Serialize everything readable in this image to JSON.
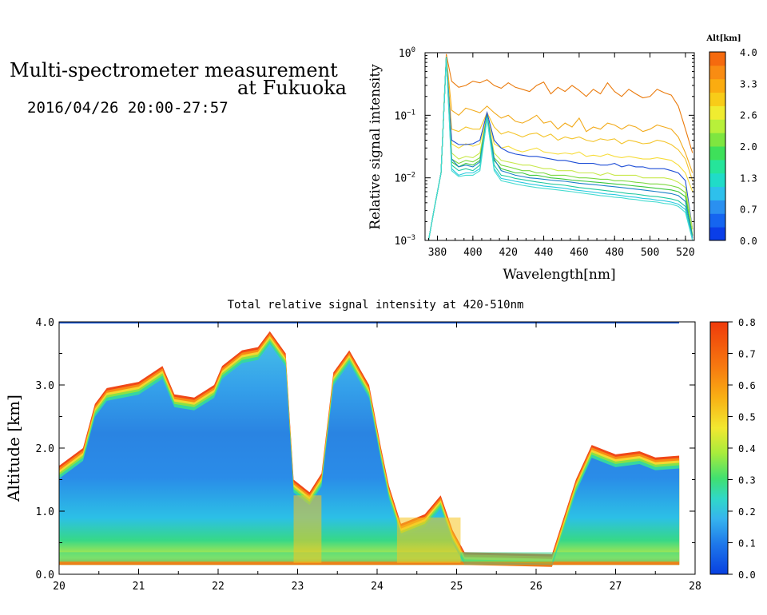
{
  "title": {
    "line1": "Multi-spectrometer measurement",
    "line2": "at Fukuoka",
    "datetime": "2016/04/26 20:00-27:57"
  },
  "chart_data": [
    {
      "type": "line",
      "xlabel": "Wavelength[nm]",
      "ylabel": "Relative signal intensity",
      "xlim": [
        373,
        525
      ],
      "ylim": [
        0.001,
        1
      ],
      "yscale": "log",
      "x_ticks": [
        380,
        400,
        420,
        440,
        460,
        480,
        500,
        520
      ],
      "y_tick_labels": [
        {
          "base": "10",
          "exp": "0",
          "value": 1
        },
        {
          "base": "10",
          "exp": "−1",
          "value": 0.1
        },
        {
          "base": "10",
          "exp": "−2",
          "value": 0.01
        },
        {
          "base": "10",
          "exp": "−3",
          "value": 0.001
        }
      ],
      "colorbar": {
        "title": "Alt[km]",
        "tick_labels": [
          "4.0",
          "3.3",
          "2.6",
          "2.0",
          "1.3",
          "0.7",
          "0.0"
        ],
        "range": [
          0.0,
          4.0
        ],
        "colors": [
          "#0a3ee8",
          "#1565f0",
          "#2a90f0",
          "#2ec0ec",
          "#20dcc8",
          "#25e59a",
          "#3ee05a",
          "#7ee640",
          "#b8f03a",
          "#f0ec30",
          "#f8cc18",
          "#fbac10",
          "#f98c12",
          "#f56a0e"
        ]
      },
      "x": [
        375,
        378,
        382,
        385,
        388,
        392,
        396,
        400,
        404,
        408,
        412,
        416,
        420,
        424,
        428,
        432,
        436,
        440,
        444,
        448,
        452,
        456,
        460,
        464,
        468,
        472,
        476,
        480,
        484,
        488,
        492,
        496,
        500,
        504,
        508,
        512,
        516,
        520,
        524
      ],
      "series": [
        {
          "color": "#ea7a0c",
          "values": [
            0.001,
            0.003,
            0.012,
            0.95,
            0.35,
            0.28,
            0.3,
            0.35,
            0.33,
            0.37,
            0.3,
            0.27,
            0.33,
            0.28,
            0.26,
            0.24,
            0.3,
            0.34,
            0.22,
            0.28,
            0.24,
            0.3,
            0.25,
            0.2,
            0.26,
            0.22,
            0.33,
            0.24,
            0.2,
            0.26,
            0.22,
            0.19,
            0.2,
            0.26,
            0.23,
            0.21,
            0.14,
            0.06,
            0.025
          ]
        },
        {
          "color": "#f2aa1a",
          "values": [
            0.001,
            0.003,
            0.012,
            0.9,
            0.12,
            0.1,
            0.13,
            0.12,
            0.11,
            0.14,
            0.11,
            0.09,
            0.1,
            0.08,
            0.075,
            0.085,
            0.1,
            0.075,
            0.08,
            0.06,
            0.075,
            0.065,
            0.09,
            0.055,
            0.065,
            0.06,
            0.075,
            0.07,
            0.06,
            0.07,
            0.065,
            0.055,
            0.06,
            0.07,
            0.065,
            0.06,
            0.045,
            0.025,
            0.012
          ]
        },
        {
          "color": "#f4c42a",
          "values": [
            0.001,
            0.003,
            0.012,
            0.88,
            0.06,
            0.055,
            0.065,
            0.06,
            0.06,
            0.11,
            0.065,
            0.05,
            0.055,
            0.05,
            0.045,
            0.05,
            0.052,
            0.045,
            0.05,
            0.04,
            0.045,
            0.042,
            0.045,
            0.04,
            0.038,
            0.042,
            0.04,
            0.042,
            0.035,
            0.04,
            0.038,
            0.035,
            0.036,
            0.04,
            0.038,
            0.034,
            0.028,
            0.02,
            0.009
          ]
        },
        {
          "color": "#f7dc3a",
          "values": [
            0.001,
            0.003,
            0.012,
            0.87,
            0.035,
            0.03,
            0.035,
            0.032,
            0.035,
            0.1,
            0.035,
            0.03,
            0.032,
            0.028,
            0.026,
            0.028,
            0.03,
            0.026,
            0.025,
            0.024,
            0.025,
            0.024,
            0.026,
            0.022,
            0.023,
            0.022,
            0.024,
            0.022,
            0.021,
            0.022,
            0.021,
            0.02,
            0.02,
            0.021,
            0.02,
            0.019,
            0.016,
            0.012,
            0.006
          ]
        },
        {
          "color": "#1e4ed6",
          "values": [
            0.001,
            0.003,
            0.012,
            0.86,
            0.04,
            0.034,
            0.034,
            0.035,
            0.04,
            0.11,
            0.04,
            0.03,
            0.026,
            0.024,
            0.023,
            0.022,
            0.022,
            0.021,
            0.02,
            0.019,
            0.019,
            0.018,
            0.017,
            0.017,
            0.017,
            0.016,
            0.016,
            0.017,
            0.015,
            0.016,
            0.015,
            0.015,
            0.014,
            0.014,
            0.014,
            0.013,
            0.012,
            0.009,
            0.0015
          ]
        },
        {
          "color": "#c8e84a",
          "values": [
            0.001,
            0.003,
            0.012,
            0.85,
            0.025,
            0.02,
            0.022,
            0.021,
            0.025,
            0.1,
            0.025,
            0.019,
            0.018,
            0.017,
            0.016,
            0.016,
            0.015,
            0.014,
            0.014,
            0.013,
            0.013,
            0.013,
            0.012,
            0.012,
            0.012,
            0.011,
            0.012,
            0.011,
            0.011,
            0.011,
            0.011,
            0.01,
            0.01,
            0.01,
            0.01,
            0.0095,
            0.0085,
            0.007,
            0.0015
          ]
        },
        {
          "color": "#7ad83e",
          "values": [
            0.001,
            0.003,
            0.012,
            0.85,
            0.02,
            0.017,
            0.019,
            0.018,
            0.021,
            0.1,
            0.021,
            0.016,
            0.015,
            0.014,
            0.013,
            0.013,
            0.012,
            0.012,
            0.011,
            0.011,
            0.011,
            0.0105,
            0.01,
            0.01,
            0.0098,
            0.0095,
            0.0095,
            0.009,
            0.009,
            0.0088,
            0.0085,
            0.0083,
            0.008,
            0.008,
            0.0078,
            0.0075,
            0.007,
            0.0058,
            0.0012
          ]
        },
        {
          "color": "#3cc83c",
          "values": [
            0.001,
            0.003,
            0.012,
            0.85,
            0.018,
            0.015,
            0.017,
            0.016,
            0.019,
            0.1,
            0.019,
            0.014,
            0.013,
            0.012,
            0.012,
            0.011,
            0.011,
            0.0105,
            0.01,
            0.0098,
            0.0095,
            0.0092,
            0.009,
            0.0088,
            0.0086,
            0.0084,
            0.0082,
            0.008,
            0.0078,
            0.0076,
            0.0074,
            0.0072,
            0.007,
            0.0068,
            0.0066,
            0.0064,
            0.006,
            0.005,
            0.0012
          ]
        },
        {
          "color": "#1a80c8",
          "values": [
            0.001,
            0.003,
            0.012,
            0.85,
            0.02,
            0.015,
            0.016,
            0.015,
            0.018,
            0.1,
            0.02,
            0.013,
            0.012,
            0.011,
            0.0105,
            0.01,
            0.0098,
            0.0095,
            0.0092,
            0.009,
            0.0088,
            0.0085,
            0.0082,
            0.008,
            0.0078,
            0.0076,
            0.0074,
            0.0072,
            0.007,
            0.0068,
            0.0066,
            0.0064,
            0.0062,
            0.006,
            0.0058,
            0.0056,
            0.0052,
            0.0042,
            0.0011
          ]
        },
        {
          "color": "#20c8a0",
          "values": [
            0.001,
            0.003,
            0.012,
            0.84,
            0.016,
            0.013,
            0.014,
            0.013,
            0.016,
            0.095,
            0.016,
            0.011,
            0.0105,
            0.0098,
            0.0094,
            0.009,
            0.0086,
            0.0083,
            0.008,
            0.0078,
            0.0076,
            0.0073,
            0.007,
            0.0068,
            0.0066,
            0.0064,
            0.0062,
            0.006,
            0.0058,
            0.0056,
            0.0055,
            0.0053,
            0.0051,
            0.005,
            0.0048,
            0.0046,
            0.0043,
            0.0035,
            0.001
          ]
        },
        {
          "color": "#28c8e0",
          "values": [
            0.001,
            0.003,
            0.012,
            0.84,
            0.014,
            0.011,
            0.012,
            0.012,
            0.014,
            0.09,
            0.014,
            0.0098,
            0.0093,
            0.0088,
            0.0084,
            0.008,
            0.0077,
            0.0074,
            0.0072,
            0.007,
            0.0068,
            0.0065,
            0.0063,
            0.0061,
            0.0059,
            0.0057,
            0.0055,
            0.0054,
            0.0052,
            0.005,
            0.0049,
            0.0047,
            0.0046,
            0.0044,
            0.0043,
            0.0041,
            0.0038,
            0.0031,
            0.001
          ]
        },
        {
          "color": "#46dcd0",
          "values": [
            0.001,
            0.003,
            0.012,
            0.84,
            0.013,
            0.0105,
            0.011,
            0.011,
            0.013,
            0.088,
            0.013,
            0.009,
            0.0085,
            0.008,
            0.0076,
            0.0073,
            0.007,
            0.0068,
            0.0066,
            0.0064,
            0.0062,
            0.006,
            0.0058,
            0.0056,
            0.0054,
            0.0052,
            0.0051,
            0.0049,
            0.0048,
            0.0046,
            0.0045,
            0.0043,
            0.0042,
            0.0041,
            0.0039,
            0.0038,
            0.0035,
            0.0028,
            0.001
          ]
        }
      ]
    },
    {
      "type": "heatmap",
      "title": "Total relative signal intensity at 420-510nm",
      "xlabel": "",
      "ylabel": "Altitude [km]",
      "xlim": [
        20,
        28
      ],
      "ylim": [
        0.0,
        4.0
      ],
      "x_ticks": [
        "20",
        "21",
        "22",
        "23",
        "24",
        "25",
        "26",
        "27",
        "28"
      ],
      "y_ticks": [
        "0.0",
        "1.0",
        "2.0",
        "3.0",
        "4.0"
      ],
      "colorbar": {
        "range": [
          0.0,
          0.8
        ],
        "tick_labels": [
          "0.8",
          "0.7",
          "0.6",
          "0.5",
          "0.4",
          "0.3",
          "0.2",
          "0.1",
          "0.0"
        ]
      },
      "cloud_top_km": [
        {
          "t": 20.0,
          "top": 1.72
        },
        {
          "t": 20.3,
          "top": 2.0
        },
        {
          "t": 20.45,
          "top": 2.7
        },
        {
          "t": 20.6,
          "top": 2.95
        },
        {
          "t": 21.0,
          "top": 3.05
        },
        {
          "t": 21.3,
          "top": 3.3
        },
        {
          "t": 21.45,
          "top": 2.85
        },
        {
          "t": 21.7,
          "top": 2.8
        },
        {
          "t": 21.95,
          "top": 3.0
        },
        {
          "t": 22.05,
          "top": 3.3
        },
        {
          "t": 22.3,
          "top": 3.55
        },
        {
          "t": 22.5,
          "top": 3.6
        },
        {
          "t": 22.65,
          "top": 3.85
        },
        {
          "t": 22.85,
          "top": 3.5
        },
        {
          "t": 22.95,
          "top": 1.5
        },
        {
          "t": 23.15,
          "top": 1.3
        },
        {
          "t": 23.3,
          "top": 1.6
        },
        {
          "t": 23.45,
          "top": 3.2
        },
        {
          "t": 23.65,
          "top": 3.55
        },
        {
          "t": 23.9,
          "top": 3.0
        },
        {
          "t": 24.05,
          "top": 2.0
        },
        {
          "t": 24.15,
          "top": 1.4
        },
        {
          "t": 24.3,
          "top": 0.8
        },
        {
          "t": 24.6,
          "top": 0.95
        },
        {
          "t": 24.8,
          "top": 1.25
        },
        {
          "t": 24.95,
          "top": 0.7
        },
        {
          "t": 25.1,
          "top": 0.35
        },
        {
          "t": 26.2,
          "top": 0.32
        },
        {
          "t": 26.5,
          "top": 1.5
        },
        {
          "t": 26.7,
          "top": 2.05
        },
        {
          "t": 27.0,
          "top": 1.9
        },
        {
          "t": 27.3,
          "top": 1.95
        },
        {
          "t": 27.5,
          "top": 1.85
        },
        {
          "t": 27.8,
          "top": 1.88
        }
      ],
      "cloud_base_km": 0.15
    }
  ]
}
